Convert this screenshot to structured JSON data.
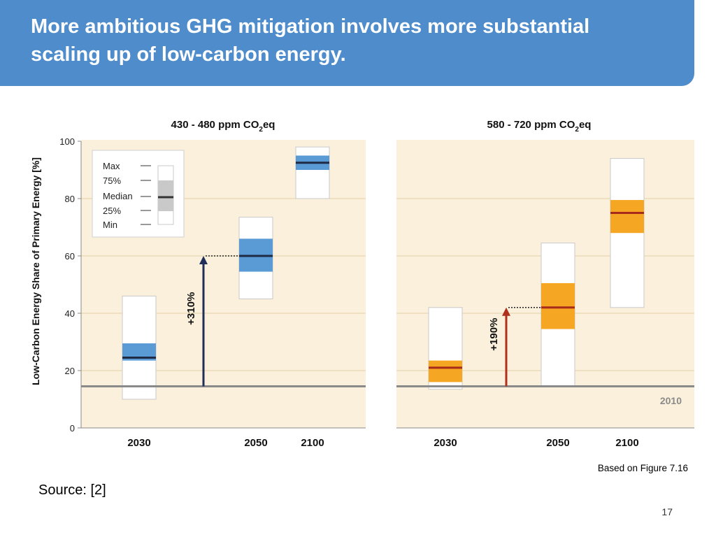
{
  "slide": {
    "title": "More ambitious GHG mitigation involves more substantial scaling up of low-carbon energy.",
    "based_on": "Based on Figure 7.16",
    "source": "Source:  [2]",
    "page_number": "17"
  },
  "colors": {
    "banner": "#4f8ccb",
    "panel_bg": "#fbf0dc",
    "blue_box": "#5b9bd5",
    "blue_median": "#1f2a44",
    "orange_box": "#f5a623",
    "orange_median": "#a82a1a",
    "baseline": "#8a8a8a",
    "arrow_blue": "#1f2f5a",
    "arrow_red": "#b0301e"
  },
  "chart_data": [
    {
      "type": "box",
      "title": "430 - 480 ppm CO2eq",
      "title_main": "430 - 480 ppm CO",
      "title_sub": "2",
      "title_end": "eq",
      "ylabel": "Low-Carbon Energy Share of Primary Energy [%]",
      "ylim": [
        0,
        100
      ],
      "yticks": [
        0,
        20,
        40,
        60,
        80,
        100
      ],
      "baseline_2010": 14.5,
      "categories": [
        "2030",
        "2050",
        "2100"
      ],
      "boxes": [
        {
          "year": "2030",
          "min": 10,
          "q1": 23.5,
          "median": 24.5,
          "q3": 29.5,
          "max": 46
        },
        {
          "year": "2050",
          "min": 45,
          "q1": 54.5,
          "median": 60,
          "q3": 66,
          "max": 73.5
        },
        {
          "year": "2100",
          "min": 80,
          "q1": 90,
          "median": 92.5,
          "q3": 95,
          "max": 98
        }
      ],
      "arrow": {
        "label": "+310%",
        "from": 14.5,
        "to": 60
      },
      "legend": {
        "labels": [
          "Max",
          "75%",
          "Median",
          "25%",
          "Min"
        ]
      }
    },
    {
      "type": "box",
      "title": "580 - 720 ppm CO2eq",
      "title_main": "580 - 720 ppm CO",
      "title_sub": "2",
      "title_end": "eq",
      "ylim": [
        0,
        100
      ],
      "baseline_2010": 14.5,
      "baseline_label": "2010",
      "categories": [
        "2030",
        "2050",
        "2100"
      ],
      "boxes": [
        {
          "year": "2030",
          "min": 13.5,
          "q1": 16,
          "median": 21,
          "q3": 23.5,
          "max": 42
        },
        {
          "year": "2050",
          "min": 14.5,
          "q1": 34.5,
          "median": 42,
          "q3": 50.5,
          "max": 64.5
        },
        {
          "year": "2100",
          "min": 42,
          "q1": 68,
          "median": 75,
          "q3": 79.5,
          "max": 94
        }
      ],
      "arrow": {
        "label": "+190%",
        "from": 14.5,
        "to": 42
      }
    }
  ]
}
